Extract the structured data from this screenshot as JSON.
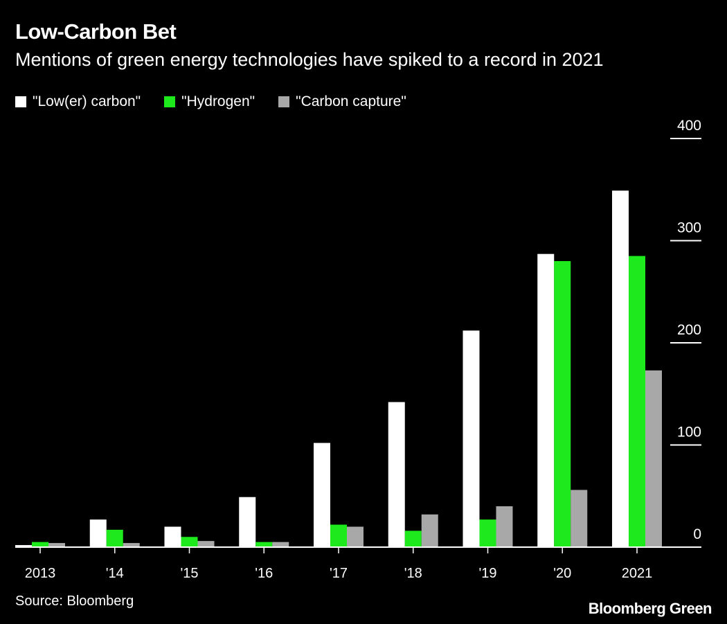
{
  "title": "Low-Carbon Bet",
  "subtitle": "Mentions of green energy technologies have spiked to a record in 2021",
  "source": "Source: Bloomberg",
  "logo": "Bloomberg Green",
  "chart_data": {
    "type": "bar",
    "categories": [
      "2013",
      "'14",
      "'15",
      "'16",
      "'17",
      "'18",
      "'19",
      "'20",
      "2021"
    ],
    "series": [
      {
        "name": "\"Low(er) carbon\"",
        "color": "#ffffff",
        "values": [
          2,
          27,
          20,
          49,
          102,
          142,
          212,
          287,
          349
        ]
      },
      {
        "name": "\"Hydrogen\"",
        "color": "#1de91d",
        "values": [
          5,
          17,
          10,
          5,
          22,
          16,
          27,
          280,
          285
        ]
      },
      {
        "name": "\"Carbon capture\"",
        "color": "#a8a8a8",
        "values": [
          4,
          4,
          6,
          5,
          20,
          32,
          40,
          56,
          173
        ]
      }
    ],
    "ylim": [
      0,
      400
    ],
    "yticks": [
      0,
      100,
      200,
      300,
      400
    ],
    "y_axis_position": "right",
    "legend": "top-left",
    "grid": false
  }
}
